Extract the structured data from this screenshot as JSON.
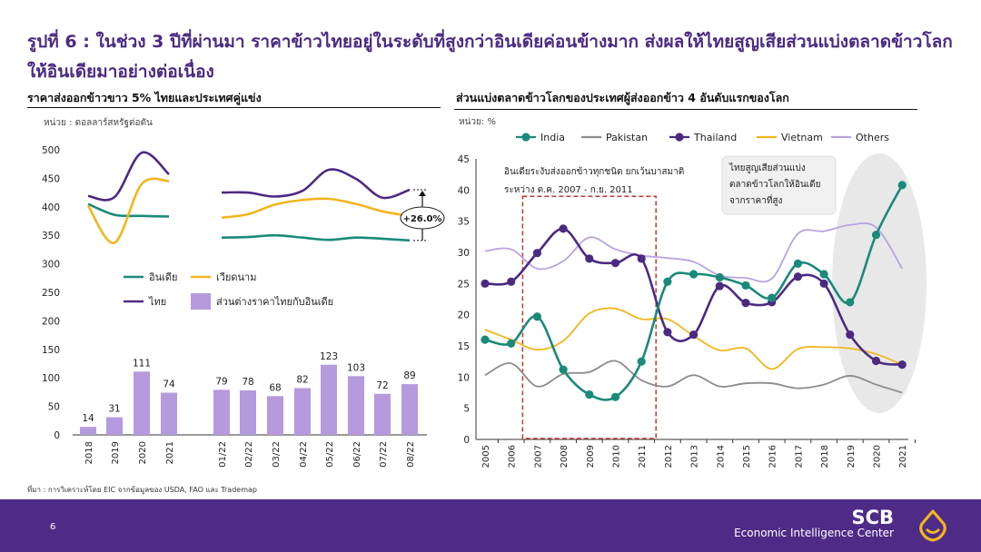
{
  "slide": {
    "title": "รูปที่ 6 : ในช่วง 3 ปีที่ผ่านมา ราคาข้าวไทยอยู่ในระดับที่สูงกว่าอินเดียค่อนข้างมาก ส่งผลให้ไทยสูญเสียส่วนแบ่งตลาดข้าวโลกให้อินเดียมาอย่างต่อเนื่อง",
    "source": "ที่มา : การวิเคราะห์โดย EIC จากข้อมูลของ USDA, FAO และ Trademap",
    "page_number": "6",
    "brand": "SCB",
    "brand_sub": "Economic Intelligence Center",
    "logo_icon": "scb-lotus-icon"
  },
  "colors": {
    "india": "#1a8a7a",
    "thailand": "#4b2a82",
    "vietnam": "#f2b51e",
    "pakistan": "#8c8c8c",
    "others": "#b9a3de",
    "bar": "#b59ade",
    "footer": "#4e2b87",
    "highlight": "#c0392b"
  },
  "chart_data": [
    {
      "type": "bar+line",
      "title": "ราคาส่งออกข้าวขาว 5% ไทยและประเทศคู่แข่ง",
      "unit": "หน่วย : ดอลลาร์สหรัฐต่อตัน",
      "ylim": [
        0,
        500
      ],
      "yticks": [
        0,
        50,
        100,
        150,
        200,
        250,
        300,
        350,
        400,
        450,
        500
      ],
      "categories": [
        "2018",
        "2019",
        "2020",
        "2021",
        "01/22",
        "02/22",
        "03/22",
        "04/22",
        "05/22",
        "06/22",
        "07/22",
        "08/22"
      ],
      "bar_series": {
        "name": "ส่วนต่างราคาไทยกับอินเดีย",
        "values": [
          14,
          31,
          111,
          74,
          79,
          78,
          68,
          82,
          123,
          103,
          72,
          89
        ]
      },
      "line_series": [
        {
          "name": "อินเดีย",
          "values": [
            405,
            386,
            384,
            383,
            346,
            347,
            350,
            346,
            342,
            346,
            344,
            341
          ]
        },
        {
          "name": "เวียดนาม",
          "values": [
            402,
            337,
            440,
            445,
            381,
            387,
            404,
            412,
            414,
            405,
            392,
            384
          ]
        },
        {
          "name": "ไทย",
          "values": [
            419,
            417,
            495,
            457,
            425,
            425,
            418,
            428,
            465,
            449,
            416,
            430
          ]
        }
      ],
      "annotation": "+26.0%",
      "legend": "center"
    },
    {
      "type": "line",
      "title": "ส่วนแบ่งตลาดข้าวโลกของประเทศผู้ส่งออกข้าว 4 อันดับแรกของโลก",
      "unit": "หน่วย: %",
      "ylim": [
        0,
        45
      ],
      "yticks": [
        0,
        5,
        10,
        15,
        20,
        25,
        30,
        35,
        40,
        45
      ],
      "x": [
        "2005",
        "2006",
        "2007",
        "2008",
        "2009",
        "2010",
        "2011",
        "2012",
        "2013",
        "2014",
        "2015",
        "2016",
        "2017",
        "2018",
        "2019",
        "2020",
        "2021"
      ],
      "series": [
        {
          "name": "India",
          "values": [
            16,
            15.4,
            19.7,
            11.2,
            7.2,
            6.8,
            12.5,
            25.3,
            26.5,
            26,
            24.7,
            22.7,
            28.2,
            26.5,
            22,
            32.8,
            40.8
          ]
        },
        {
          "name": "Pakistan",
          "values": [
            10.3,
            12.2,
            8.5,
            10.5,
            10.8,
            12.6,
            9.5,
            8.5,
            10.3,
            8.5,
            9,
            9,
            8.2,
            8.8,
            10.2,
            8.8,
            7.5
          ]
        },
        {
          "name": "Thailand",
          "values": [
            25,
            25.3,
            29.9,
            33.8,
            29,
            28.3,
            29,
            17.2,
            16.8,
            24.6,
            21.9,
            22,
            26.1,
            25,
            16.8,
            12.6,
            12
          ]
        },
        {
          "name": "Vietnam",
          "values": [
            17.6,
            16,
            14.4,
            15.8,
            20.2,
            21,
            19.3,
            19.3,
            16.6,
            14.3,
            14.6,
            11.3,
            14.5,
            14.8,
            14.6,
            13.7,
            12
          ]
        },
        {
          "name": "Others",
          "values": [
            30.2,
            30.5,
            27.4,
            28.6,
            32.4,
            30.5,
            29.5,
            29.1,
            28.5,
            26.3,
            25.9,
            25.8,
            33,
            33.4,
            34.4,
            34,
            27.4
          ]
        }
      ],
      "legend": "top",
      "annotation_box": "อินเดียระงับส่งออกข้าวทุกชนิด ยกเว้นบาสมาติ ระหว่าง ต.ค. 2007 - ก.ย. 2011",
      "annotation_callout": "ไทยสูญเสียส่วนแบ่งตลาดข้าวโลกให้อินเดียจากราคาที่สูง"
    }
  ]
}
